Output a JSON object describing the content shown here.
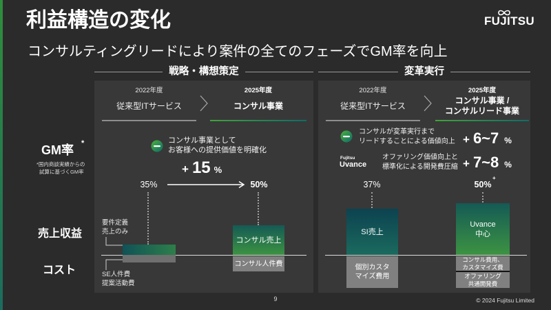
{
  "title": "利益構造の変化",
  "subtitle": "コンサルティングリードにより案件の全てのフェーズでGM率を向上",
  "logo": {
    "text": "FUJITSU"
  },
  "colors": {
    "background": "#2b2b2b",
    "panel": "#383838",
    "accent_green": "#3c9342",
    "accent_teal": "#155a55",
    "cost_gray": "#808080"
  },
  "icons": {
    "chevron": "chevron-right-icon",
    "badge": "uvance-badge-icon",
    "arrow": "arrow-right-icon"
  },
  "row_labels": {
    "gm": "GM率",
    "gm_mark": "*",
    "gm_note": [
      "*国内商談実績からの",
      "試算に基づくGM率"
    ],
    "revenue": "売上収益",
    "cost": "コスト"
  },
  "strategy": {
    "heading": "戦略・構想策定",
    "from": {
      "year": "2022年度",
      "label": "従来型ITサービス"
    },
    "to": {
      "year": "2025年度",
      "label": "コンサル事業"
    },
    "note": [
      "コンサル事業として",
      "お客様への提供価値を明確化"
    ],
    "gain": {
      "sign": "+",
      "value": "15",
      "unit": "%"
    },
    "gm_from": "35%",
    "gm_to": "50%",
    "from_revenue_label": [
      "要件定義",
      "売上のみ"
    ],
    "from_cost_label": [
      "SE人件費",
      "提案活動費"
    ],
    "to_revenue": "コンサル売上",
    "to_cost": "コンサル人件費"
  },
  "execution": {
    "heading": "変革実行",
    "from": {
      "year": "2022年度",
      "label": "従来型ITサービス"
    },
    "to": {
      "year": "2025年度",
      "label": [
        "コンサル事業 /",
        "コンサルリード事業"
      ]
    },
    "drivers": [
      {
        "note": [
          "コンサルが変革実行まで",
          "リードすることによる価値向上"
        ],
        "gain": {
          "sign": "+",
          "value": "6~7",
          "unit": "%"
        }
      },
      {
        "logo": [
          "Fujitsu",
          "Uvance"
        ],
        "note": [
          "オファリング価値向上と",
          "標準化による開発費圧縮"
        ],
        "gain": {
          "sign": "+",
          "value": "7~8",
          "unit": "%"
        }
      }
    ],
    "gm_from": "37%",
    "gm_to": "50%",
    "gm_to_mark": "+",
    "from_revenue": "SI売上",
    "from_cost": [
      "個別カスタ",
      "マイズ費用"
    ],
    "to_revenue": [
      "Uvance",
      "中心"
    ],
    "to_cost_consulting": [
      "コンサル費用、",
      "カスタマイズ費"
    ],
    "to_cost_offering": [
      "オファリング",
      "共通開発費"
    ]
  },
  "footer": {
    "page_number": "9",
    "copyright": "© 2024 Fujitsu Limited"
  }
}
